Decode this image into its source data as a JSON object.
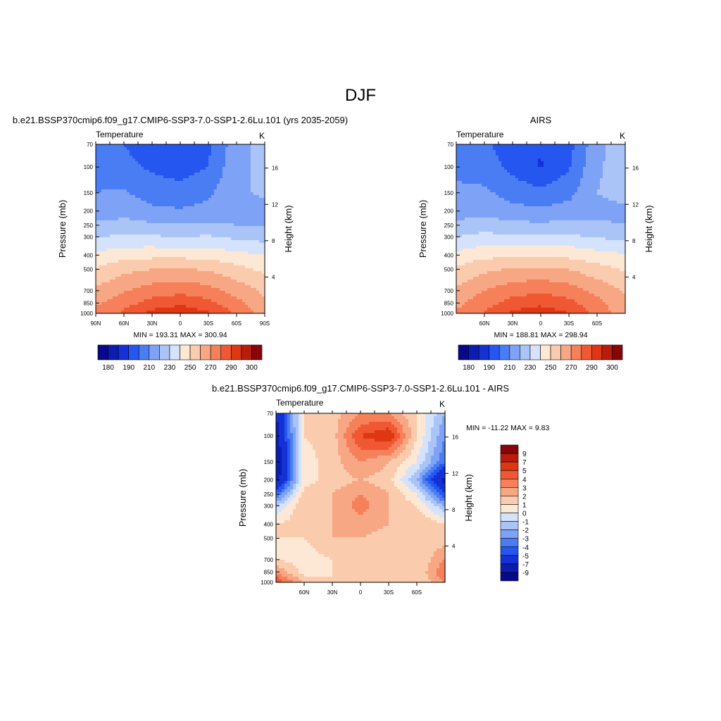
{
  "figure": {
    "title": "DJF"
  },
  "legend_colors": [
    "#08088c",
    "#0d1cb0",
    "#1431d8",
    "#2556ef",
    "#4a7df3",
    "#7ea2f5",
    "#abc4f7",
    "#d4e3fb",
    "#fde8d6",
    "#fbcbae",
    "#f8a784",
    "#f5805a",
    "#ef5832",
    "#de3714",
    "#b91c0c",
    "#880608"
  ],
  "diff_colors": [
    "#08088c",
    "#0d1cb0",
    "#1431d8",
    "#2556ef",
    "#4a7df3",
    "#7ea2f5",
    "#abc4f7",
    "#d4e3fb",
    "#fde8d6",
    "#fbcbae",
    "#f8a784",
    "#f5805a",
    "#ef5832",
    "#de3714",
    "#b91c0c",
    "#880608"
  ],
  "chart_data": [
    {
      "type": "heatmap",
      "title": "b.e21.BSSP370cmip6.f09_g17.CMIP6-SSP3-7.0-SSP1-2.6Lu.101 (yrs 2035-2059)",
      "subtitle_left": "Temperature",
      "subtitle_right": "K",
      "xlabel": "",
      "ylabel": "Pressure (mb)",
      "ylabel_right": "Height (km)",
      "x_ticks": [
        "90N",
        "60N",
        "30N",
        "0",
        "30S",
        "60S",
        "90S"
      ],
      "y_ticks": [
        "70",
        "100",
        "150",
        "200",
        "250",
        "300",
        "400",
        "500",
        "700",
        "850",
        "1000"
      ],
      "y_ticks_right": [
        "16",
        "12",
        "8",
        "4"
      ],
      "stats": "MIN = 193.31  MAX = 300.94",
      "colorbar_labels": [
        "180",
        "190",
        "210",
        "230",
        "250",
        "270",
        "290",
        "300"
      ],
      "latitudes": [
        90,
        60,
        30,
        0,
        -30,
        -60,
        -90
      ],
      "levels_mb": [
        70,
        100,
        150,
        200,
        250,
        300,
        400,
        500,
        700,
        850,
        1000
      ],
      "values_K": [
        [
          205,
          200,
          192,
          194,
          198,
          216,
          224
        ],
        [
          208,
          204,
          198,
          195,
          200,
          218,
          222
        ],
        [
          210,
          211,
          206,
          204,
          208,
          219,
          221
        ],
        [
          214,
          216,
          212,
          211,
          213,
          217,
          218
        ],
        [
          222,
          224,
          222,
          221,
          222,
          220,
          219
        ],
        [
          229,
          232,
          231,
          230,
          231,
          228,
          226
        ],
        [
          242,
          246,
          247,
          247,
          246,
          243,
          240
        ],
        [
          251,
          257,
          260,
          261,
          259,
          253,
          248
        ],
        [
          262,
          269,
          275,
          277,
          274,
          266,
          258
        ],
        [
          268,
          276,
          284,
          287,
          283,
          273,
          262
        ],
        [
          273,
          282,
          293,
          299,
          291,
          278,
          265
        ]
      ]
    },
    {
      "type": "heatmap",
      "title": "AIRS",
      "subtitle_left": "Temperature",
      "subtitle_right": "K",
      "xlabel": "",
      "ylabel": "Pressure (mb)",
      "ylabel_right": "Height (km)",
      "x_ticks": [
        "60N",
        "30N",
        "0",
        "30S",
        "60S"
      ],
      "y_ticks": [
        "70",
        "100",
        "150",
        "200",
        "250",
        "300",
        "400",
        "500",
        "700",
        "850",
        "1000"
      ],
      "y_ticks_right": [
        "16",
        "12",
        "8",
        "4"
      ],
      "stats": "MIN = 188.81  MAX = 298.94",
      "colorbar_labels": [
        "180",
        "190",
        "210",
        "230",
        "250",
        "270",
        "290",
        "300"
      ],
      "latitudes": [
        90,
        60,
        30,
        0,
        -30,
        -60,
        -90
      ],
      "levels_mb": [
        70,
        100,
        150,
        200,
        250,
        300,
        400,
        500,
        700,
        850,
        1000
      ],
      "values_K": [
        [
          207,
          202,
          194,
          191,
          196,
          217,
          226
        ],
        [
          209,
          205,
          197,
          189,
          199,
          219,
          224
        ],
        [
          211,
          212,
          206,
          203,
          207,
          220,
          222
        ],
        [
          215,
          217,
          213,
          212,
          214,
          218,
          219
        ],
        [
          223,
          225,
          223,
          222,
          223,
          221,
          220
        ],
        [
          230,
          233,
          232,
          231,
          232,
          229,
          227
        ],
        [
          243,
          247,
          248,
          248,
          247,
          244,
          241
        ],
        [
          252,
          258,
          261,
          262,
          260,
          254,
          249
        ],
        [
          262,
          270,
          276,
          278,
          275,
          267,
          259
        ],
        [
          267,
          276,
          284,
          287,
          283,
          273,
          262
        ],
        [
          272,
          281,
          292,
          297,
          290,
          277,
          264
        ]
      ]
    },
    {
      "type": "heatmap",
      "title": "b.e21.BSSP370cmip6.f09_g17.CMIP6-SSP3-7.0-SSP1-2.6Lu.101 - AIRS",
      "subtitle_left": "Temperature",
      "subtitle_right": "K",
      "xlabel": "",
      "ylabel": "Pressure (mb)",
      "ylabel_right": "Height (km)",
      "x_ticks": [
        "60N",
        "30N",
        "0",
        "30S",
        "60S"
      ],
      "y_ticks": [
        "70",
        "100",
        "150",
        "200",
        "250",
        "300",
        "400",
        "500",
        "700",
        "850",
        "1000"
      ],
      "y_ticks_right": [
        "16",
        "12",
        "8",
        "4"
      ],
      "stats": "MIN = -11.22  MAX =   9.83",
      "colorbar_labels": [
        "9",
        "7",
        "5",
        "4",
        "3",
        "2",
        "1",
        "0",
        "-1",
        "-2",
        "-3",
        "-4",
        "-5",
        "-7",
        "-9"
      ],
      "latitudes": [
        90,
        60,
        30,
        0,
        -30,
        -60,
        -90
      ],
      "levels_mb": [
        70,
        100,
        150,
        200,
        250,
        300,
        400,
        500,
        700,
        850,
        1000
      ],
      "values_K": [
        [
          -7,
          1,
          1.5,
          3,
          3,
          1,
          -2
        ],
        [
          -8,
          1,
          1.5,
          5,
          6,
          1,
          -3
        ],
        [
          -9,
          0.5,
          1.5,
          3,
          2,
          0,
          -4
        ],
        [
          -8,
          0.5,
          1.5,
          2,
          1.5,
          -2,
          -8
        ],
        [
          -4,
          1.5,
          2,
          3,
          2,
          0,
          -5
        ],
        [
          -1,
          2,
          2,
          3.5,
          2,
          1,
          -2
        ],
        [
          1,
          1.5,
          2,
          2.5,
          2,
          2,
          1
        ],
        [
          1,
          1,
          2,
          2,
          1.5,
          1.5,
          1.5
        ],
        [
          1,
          0.5,
          1,
          1.5,
          1.5,
          1,
          3
        ],
        [
          3,
          0.5,
          1,
          1,
          1,
          1,
          4
        ],
        [
          5,
          2,
          1,
          1.5,
          1,
          1,
          3
        ]
      ]
    }
  ]
}
